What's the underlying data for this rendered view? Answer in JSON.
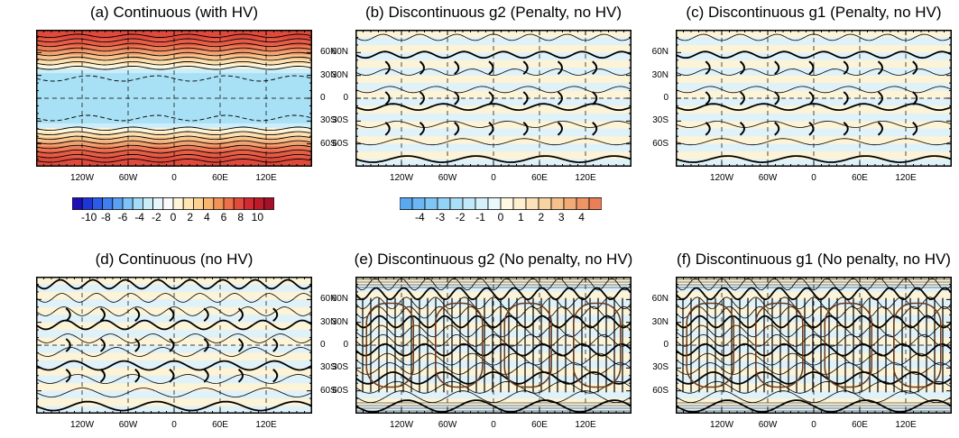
{
  "chart_data": [
    {
      "id": "a",
      "type": "heatmap",
      "title": "(a) Continuous (with HV)",
      "field": "zonal bands",
      "lat_ticks": [
        "60N",
        "30N",
        "0",
        "30S",
        "60S"
      ],
      "lon_ticks": [
        "120W",
        "60W",
        "0",
        "60E",
        "120E"
      ],
      "ylabel_side": "right",
      "show_xlabels": true,
      "colorbar": "wide"
    },
    {
      "id": "b",
      "type": "heatmap",
      "title": "(b) Discontinuous g2 (Penalty, no HV)",
      "field": "near-zero with cell-edge noise",
      "lat_ticks": [
        "60N",
        "30N",
        "0",
        "30S",
        "60S"
      ],
      "lon_ticks": [
        "120W",
        "60W",
        "0",
        "60E",
        "120E"
      ],
      "ylabel_side": "left",
      "show_xlabels": true,
      "colorbar": "narrow"
    },
    {
      "id": "c",
      "type": "heatmap",
      "title": "(c) Discontinuous g1 (Penalty, no HV)",
      "field": "near-zero with cell-edge noise",
      "lat_ticks": [
        "60N",
        "30N",
        "0",
        "30S",
        "60S"
      ],
      "lon_ticks": [
        "120W",
        "60W",
        "0",
        "60E",
        "120E"
      ],
      "ylabel_side": "left",
      "show_xlabels": true,
      "colorbar": null
    },
    {
      "id": "d",
      "type": "heatmap",
      "title": "(d) Continuous (no HV)",
      "field": "noisy",
      "lat_ticks": [
        "60N",
        "30N",
        "0",
        "30S",
        "60S"
      ],
      "lon_ticks": [
        "120W",
        "60W",
        "0",
        "60E",
        "120E"
      ],
      "ylabel_side": "right",
      "show_xlabels": true,
      "colorbar": null
    },
    {
      "id": "e",
      "type": "heatmap",
      "title": "(e) Discontinuous g2 (No penalty, no HV)",
      "field": "strongly noisy",
      "lat_ticks": [
        "60N",
        "30N",
        "0",
        "30S",
        "60S"
      ],
      "lon_ticks": [
        "120W",
        "60W",
        "0",
        "60E",
        "120E"
      ],
      "ylabel_side": "left",
      "show_xlabels": true,
      "colorbar": null
    },
    {
      "id": "f",
      "type": "heatmap",
      "title": "(f) Discontinuous g1 (No penalty, no HV)",
      "field": "strongly noisy",
      "lat_ticks": [
        "60N",
        "30N",
        "0",
        "30S",
        "60S"
      ],
      "lon_ticks": [
        "120W",
        "60W",
        "0",
        "60E",
        "120E"
      ],
      "ylabel_side": "left",
      "show_xlabels": true,
      "colorbar": null
    }
  ],
  "colorbars": {
    "wide": {
      "labels": [
        "-10",
        "-8",
        "-6",
        "-4",
        "-2",
        "0",
        "2",
        "4",
        "6",
        "8",
        "10"
      ],
      "colors": [
        "#1e10b4",
        "#1f35d8",
        "#2b5be8",
        "#3f7ff0",
        "#5aa0f5",
        "#7dc2f8",
        "#a4dcf8",
        "#c9eef8",
        "#e6f7fa",
        "#fbfbfb",
        "#fff5d8",
        "#ffe6b4",
        "#fdd190",
        "#f9b470",
        "#f39457",
        "#ec7048",
        "#e34a3c",
        "#d32a32",
        "#bf1a2a",
        "#a5102a"
      ]
    },
    "narrow": {
      "labels": [
        "-4",
        "-3",
        "-2",
        "-1",
        "0",
        "1",
        "2",
        "3",
        "4"
      ],
      "colors": [
        "#5aa8f0",
        "#6ab7f3",
        "#7ec6f5",
        "#93d3f6",
        "#aadff8",
        "#c1e9f9",
        "#d6f1fa",
        "#e8f8fb",
        "#fff8e3",
        "#fdefcf",
        "#fbe2b8",
        "#f8d2a0",
        "#f5c08a",
        "#f2ab76",
        "#ee9566",
        "#e97e58"
      ]
    }
  },
  "colors": {
    "cool": "#dff2fa",
    "warm": "#fdf3d6",
    "contour": "#000000"
  }
}
